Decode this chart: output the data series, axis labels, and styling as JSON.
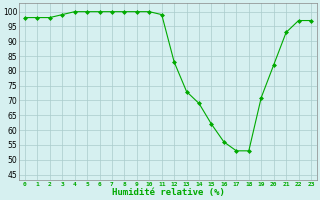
{
  "x": [
    0,
    1,
    2,
    3,
    4,
    5,
    6,
    7,
    8,
    9,
    10,
    11,
    12,
    13,
    14,
    15,
    16,
    17,
    18,
    19,
    20,
    21,
    22,
    23
  ],
  "y": [
    98,
    98,
    98,
    99,
    100,
    100,
    100,
    100,
    100,
    100,
    100,
    99,
    83,
    73,
    69,
    62,
    56,
    53,
    53,
    71,
    82,
    93,
    97,
    97
  ],
  "line_color": "#00aa00",
  "marker": "D",
  "marker_size": 2.0,
  "bg_color": "#d6f0f0",
  "grid_color": "#aacccc",
  "xlabel": "Humidité relative (%)",
  "xlabel_color": "#00aa00",
  "ylabel_ticks": [
    45,
    50,
    55,
    60,
    65,
    70,
    75,
    80,
    85,
    90,
    95,
    100
  ],
  "xlim": [
    -0.5,
    23.5
  ],
  "ylim": [
    43,
    103
  ],
  "xtick_labels": [
    "0",
    "1",
    "2",
    "3",
    "4",
    "5",
    "6",
    "7",
    "8",
    "9",
    "10",
    "11",
    "12",
    "13",
    "14",
    "15",
    "16",
    "17",
    "18",
    "19",
    "20",
    "21",
    "22",
    "23"
  ]
}
